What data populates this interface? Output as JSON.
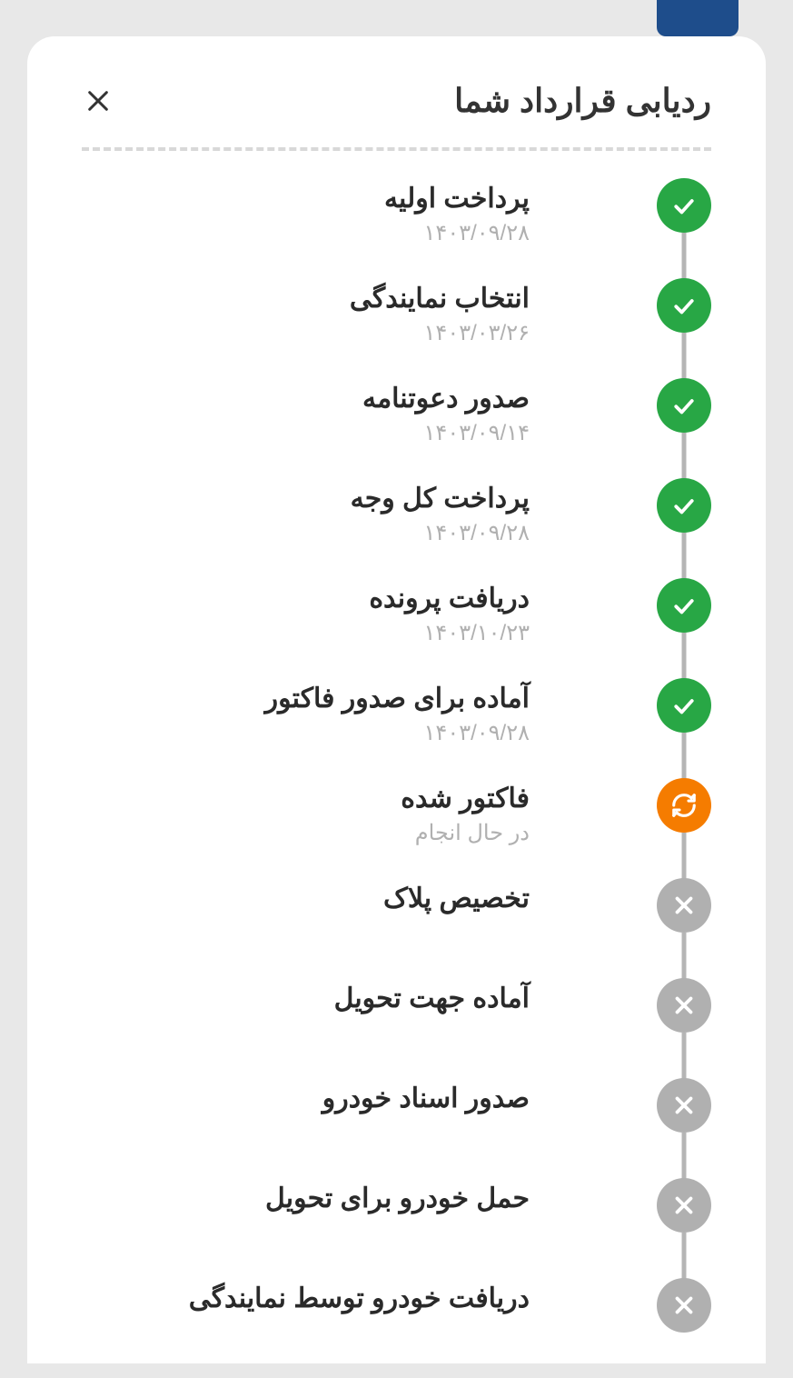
{
  "modal": {
    "title": "ردیابی قرارداد شما"
  },
  "colors": {
    "done": "#28a745",
    "progress": "#f57c00",
    "pending": "#b0b0b0",
    "connector": "#b5b5b5",
    "title_text": "#2a2a2a",
    "date_text": "#b0b0b0",
    "background": "#ffffff",
    "backdrop": "#e8e8e8"
  },
  "steps": [
    {
      "title": "پرداخت اولیه",
      "date": "۱۴۰۳/۰۹/۲۸",
      "status": "done"
    },
    {
      "title": "انتخاب نمایندگی",
      "date": "۱۴۰۳/۰۳/۲۶",
      "status": "done"
    },
    {
      "title": "صدور دعوتنامه",
      "date": "۱۴۰۳/۰۹/۱۴",
      "status": "done"
    },
    {
      "title": "پرداخت کل وجه",
      "date": "۱۴۰۳/۰۹/۲۸",
      "status": "done"
    },
    {
      "title": "دریافت پرونده",
      "date": "۱۴۰۳/۱۰/۲۳",
      "status": "done"
    },
    {
      "title": "آماده برای صدور فاکتور",
      "date": "۱۴۰۳/۰۹/۲۸",
      "status": "done"
    },
    {
      "title": "فاکتور شده",
      "date": "در حال انجام",
      "status": "progress"
    },
    {
      "title": "تخصیص پلاک",
      "date": "",
      "status": "pending"
    },
    {
      "title": "آماده جهت تحویل",
      "date": "",
      "status": "pending"
    },
    {
      "title": "صدور اسناد خودرو",
      "date": "",
      "status": "pending"
    },
    {
      "title": "حمل خودرو برای تحویل",
      "date": "",
      "status": "pending"
    },
    {
      "title": "دریافت خودرو توسط نمایندگی",
      "date": "",
      "status": "pending"
    }
  ]
}
